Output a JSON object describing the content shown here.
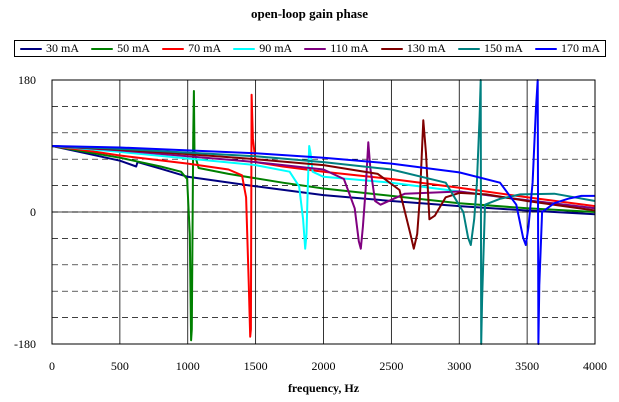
{
  "chart_data": {
    "type": "line",
    "title": "open-loop gain phase",
    "xlabel": "frequency, Hz",
    "ylabel": "",
    "xlim": [
      0,
      4000
    ],
    "ylim": [
      -180,
      180
    ],
    "x_ticks": [
      0,
      500,
      1000,
      1500,
      2000,
      2500,
      3000,
      3500,
      4000
    ],
    "y_ticks": [
      180,
      0,
      -180
    ],
    "x_tick_labels": [
      "0",
      "500",
      "1000",
      "1500",
      "2000",
      "2500",
      "3000",
      "3500",
      "4000"
    ],
    "y_tick_labels": [
      "180",
      "0",
      "-180"
    ],
    "grid": {
      "x": "solid",
      "y_major": "dashed",
      "y_minor_step": 36
    },
    "legend_position": "top",
    "series": [
      {
        "name": "30 mA",
        "color": "#000080",
        "points": [
          [
            0,
            90
          ],
          [
            250,
            80
          ],
          [
            500,
            70
          ],
          [
            620,
            62
          ],
          [
            630,
            68
          ],
          [
            800,
            59
          ],
          [
            1000,
            48
          ],
          [
            1500,
            35
          ],
          [
            2000,
            23
          ],
          [
            2500,
            15
          ],
          [
            3000,
            8
          ],
          [
            3500,
            2
          ],
          [
            4000,
            -3
          ]
        ]
      },
      {
        "name": "50 mA",
        "color": "#008000",
        "points": [
          [
            0,
            90
          ],
          [
            250,
            82
          ],
          [
            500,
            74
          ],
          [
            800,
            62
          ],
          [
            950,
            55
          ],
          [
            995,
            45
          ],
          [
            1015,
            -30
          ],
          [
            1025,
            -175
          ],
          [
            1030,
            -160
          ],
          [
            1040,
            100
          ],
          [
            1045,
            165
          ],
          [
            1050,
            80
          ],
          [
            1080,
            60
          ],
          [
            1300,
            52
          ],
          [
            1700,
            40
          ],
          [
            2000,
            32
          ],
          [
            2500,
            22
          ],
          [
            3000,
            12
          ],
          [
            3500,
            5
          ],
          [
            4000,
            0
          ]
        ]
      },
      {
        "name": "70 mA",
        "color": "#FF0000",
        "points": [
          [
            0,
            90
          ],
          [
            250,
            84
          ],
          [
            500,
            77
          ],
          [
            1000,
            66
          ],
          [
            1300,
            58
          ],
          [
            1400,
            50
          ],
          [
            1430,
            20
          ],
          [
            1450,
            -100
          ],
          [
            1460,
            -170
          ],
          [
            1465,
            -160
          ],
          [
            1470,
            160
          ],
          [
            1480,
            100
          ],
          [
            1500,
            68
          ],
          [
            1700,
            62
          ],
          [
            2000,
            55
          ],
          [
            2500,
            45
          ],
          [
            3000,
            33
          ],
          [
            3500,
            20
          ],
          [
            4000,
            8
          ]
        ]
      },
      {
        "name": "90 mA",
        "color": "#00FFFF",
        "points": [
          [
            0,
            90
          ],
          [
            500,
            82
          ],
          [
            1000,
            73
          ],
          [
            1500,
            64
          ],
          [
            1750,
            55
          ],
          [
            1820,
            35
          ],
          [
            1850,
            -10
          ],
          [
            1865,
            -50
          ],
          [
            1875,
            -30
          ],
          [
            1885,
            40
          ],
          [
            1895,
            90
          ],
          [
            1905,
            80
          ],
          [
            1920,
            55
          ],
          [
            2000,
            48
          ],
          [
            2500,
            40
          ],
          [
            3000,
            28
          ],
          [
            3500,
            16
          ],
          [
            4000,
            5
          ]
        ]
      },
      {
        "name": "110 mA",
        "color": "#800080",
        "points": [
          [
            0,
            90
          ],
          [
            500,
            84
          ],
          [
            1000,
            76
          ],
          [
            1500,
            68
          ],
          [
            2000,
            58
          ],
          [
            2150,
            45
          ],
          [
            2230,
            5
          ],
          [
            2260,
            -40
          ],
          [
            2275,
            -50
          ],
          [
            2290,
            -20
          ],
          [
            2310,
            30
          ],
          [
            2330,
            95
          ],
          [
            2345,
            60
          ],
          [
            2380,
            15
          ],
          [
            2420,
            10
          ],
          [
            2600,
            25
          ],
          [
            3000,
            28
          ],
          [
            3500,
            16
          ],
          [
            4000,
            5
          ]
        ]
      },
      {
        "name": "130 mA",
        "color": "#800000",
        "points": [
          [
            0,
            90
          ],
          [
            500,
            85
          ],
          [
            1000,
            79
          ],
          [
            1500,
            72
          ],
          [
            2000,
            64
          ],
          [
            2400,
            52
          ],
          [
            2560,
            30
          ],
          [
            2640,
            -30
          ],
          [
            2665,
            -50
          ],
          [
            2690,
            -30
          ],
          [
            2710,
            20
          ],
          [
            2735,
            125
          ],
          [
            2755,
            80
          ],
          [
            2780,
            -10
          ],
          [
            2820,
            -5
          ],
          [
            2900,
            20
          ],
          [
            3000,
            26
          ],
          [
            3200,
            24
          ],
          [
            3500,
            15
          ],
          [
            4000,
            2
          ]
        ]
      },
      {
        "name": "150 mA",
        "color": "#008080",
        "points": [
          [
            0,
            90
          ],
          [
            500,
            86
          ],
          [
            1000,
            81
          ],
          [
            1500,
            76
          ],
          [
            2000,
            68
          ],
          [
            2500,
            58
          ],
          [
            2900,
            40
          ],
          [
            3030,
            0
          ],
          [
            3065,
            -35
          ],
          [
            3085,
            -45
          ],
          [
            3110,
            -10
          ],
          [
            3130,
            40
          ],
          [
            3150,
            130
          ],
          [
            3158,
            180
          ],
          [
            3162,
            -180
          ],
          [
            3168,
            -120
          ],
          [
            3190,
            10
          ],
          [
            3300,
            18
          ],
          [
            3450,
            24
          ],
          [
            3700,
            25
          ],
          [
            4000,
            15
          ]
        ]
      },
      {
        "name": "170 mA",
        "color": "#0000FF",
        "points": [
          [
            0,
            90
          ],
          [
            500,
            88
          ],
          [
            1000,
            84
          ],
          [
            1500,
            80
          ],
          [
            2000,
            74
          ],
          [
            2500,
            66
          ],
          [
            3000,
            54
          ],
          [
            3300,
            40
          ],
          [
            3420,
            10
          ],
          [
            3470,
            -35
          ],
          [
            3490,
            -45
          ],
          [
            3510,
            -20
          ],
          [
            3540,
            40
          ],
          [
            3565,
            140
          ],
          [
            3578,
            180
          ],
          [
            3583,
            -180
          ],
          [
            3590,
            -100
          ],
          [
            3610,
            0
          ],
          [
            3700,
            12
          ],
          [
            3800,
            18
          ],
          [
            3900,
            22
          ],
          [
            4000,
            22
          ]
        ]
      }
    ]
  }
}
